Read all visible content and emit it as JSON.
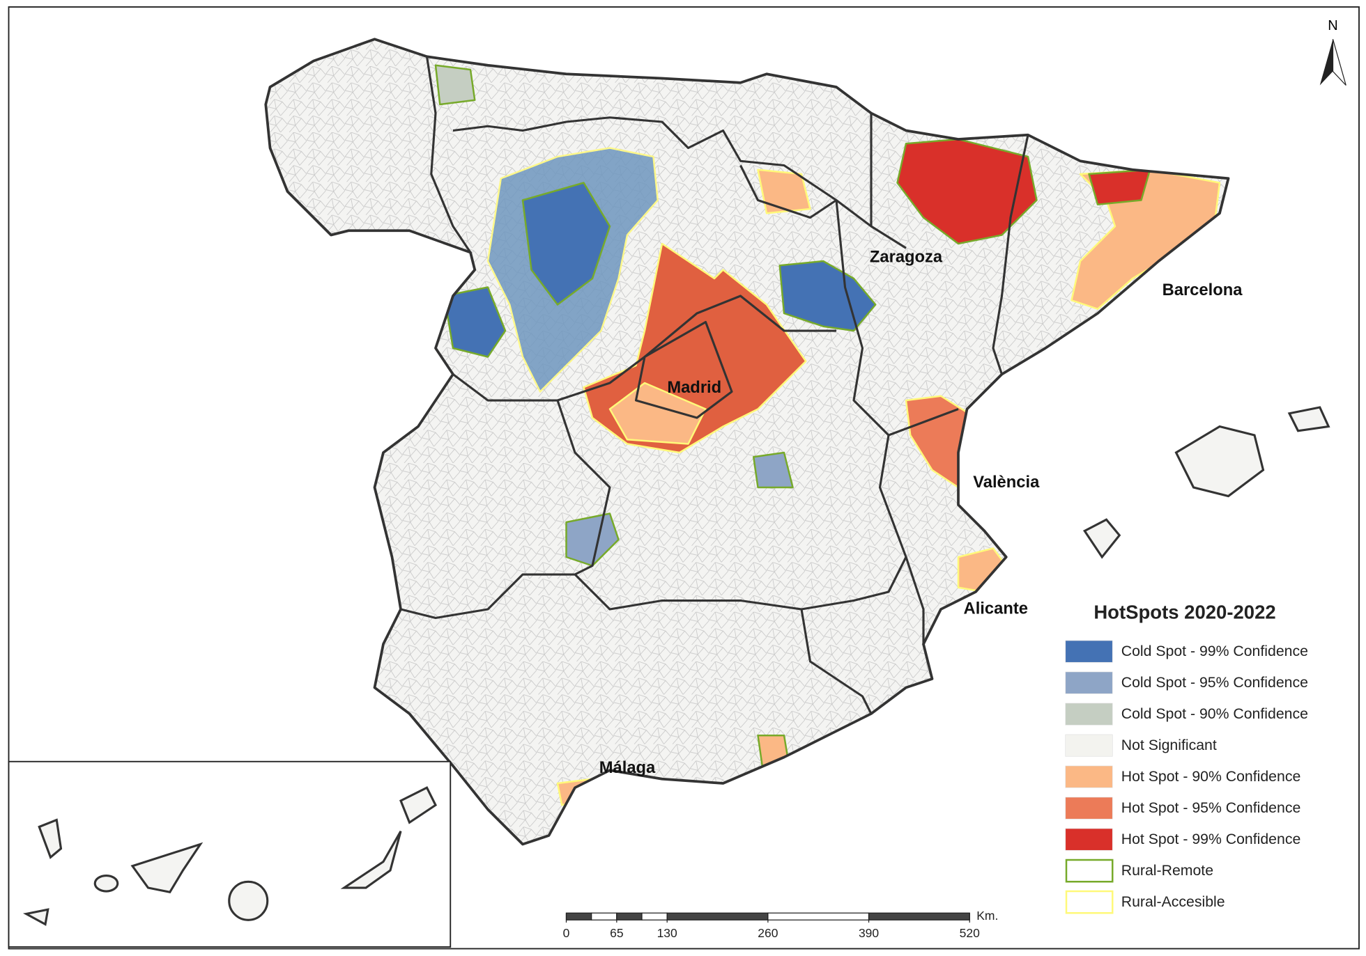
{
  "map": {
    "north": "N",
    "cities": [
      "Zaragoza",
      "Barcelona",
      "Madrid",
      "València",
      "Alicante",
      "Málaga"
    ],
    "legend": {
      "title": "HotSpots 2020-2022",
      "items": [
        {
          "label": "Cold Spot - 99% Confidence",
          "color": "#4472b4"
        },
        {
          "label": "Cold Spot - 95% Confidence",
          "color": "#8ea5c6"
        },
        {
          "label": "Cold Spot - 90% Confidence",
          "color": "#c5cec2"
        },
        {
          "label": "Not Significant",
          "color": "#f3f3ef"
        },
        {
          "label": "Hot Spot - 90% Confidence",
          "color": "#fbb885"
        },
        {
          "label": "Hot Spot - 95% Confidence",
          "color": "#ec7b58"
        },
        {
          "label": "Hot Spot - 99% Confidence",
          "color": "#d9302a"
        },
        {
          "label": "Rural-Remote",
          "color": "#77aa2a",
          "outline": true
        },
        {
          "label": "Rural-Accesible",
          "color": "#fff97a",
          "outline": true
        }
      ]
    },
    "scale": {
      "ticks": [
        0,
        65,
        130,
        260,
        390,
        520
      ],
      "unit": "Km."
    }
  }
}
